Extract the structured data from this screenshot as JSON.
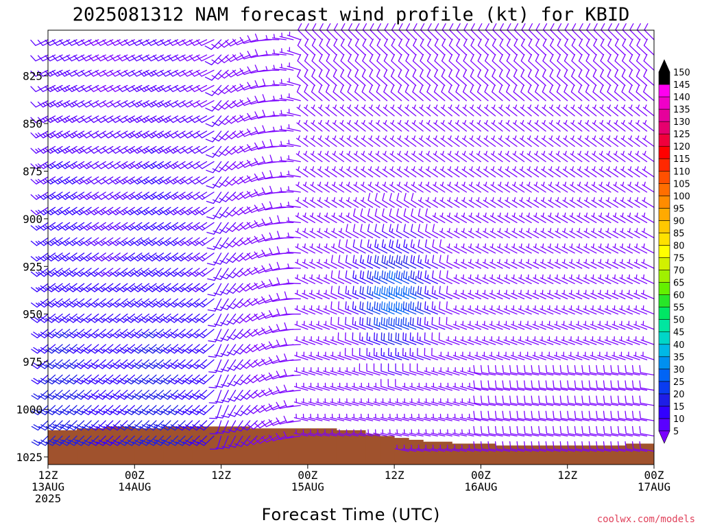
{
  "chart_data": {
    "type": "wind-barb-profile",
    "title": "2025081312 NAM forecast wind profile (kt) for KBID",
    "xlabel": "Forecast Time (UTC)",
    "ylabel": "",
    "y_axis": {
      "ticks": [
        825,
        850,
        875,
        900,
        925,
        950,
        975,
        1000,
        1025
      ],
      "range_hpa": [
        801,
        1029
      ],
      "inverted": true
    },
    "x_axis": {
      "ticks": [
        {
          "line1": "12Z",
          "line2": "13AUG",
          "line3": "2025",
          "hour": 0
        },
        {
          "line1": "00Z",
          "line2": "14AUG",
          "line3": "",
          "hour": 12
        },
        {
          "line1": "12Z",
          "line2": "",
          "line3": "",
          "hour": 24
        },
        {
          "line1": "00Z",
          "line2": "15AUG",
          "line3": "",
          "hour": 36
        },
        {
          "line1": "12Z",
          "line2": "",
          "line3": "",
          "hour": 48
        },
        {
          "line1": "00Z",
          "line2": "16AUG",
          "line3": "",
          "hour": 60
        },
        {
          "line1": "12Z",
          "line2": "",
          "line3": "",
          "hour": 72
        },
        {
          "line1": "00Z",
          "line2": "17AUG",
          "line3": "",
          "hour": 84
        }
      ],
      "range_hours": [
        0,
        84
      ]
    },
    "colorbar": {
      "levels": [
        5,
        10,
        15,
        20,
        25,
        30,
        35,
        40,
        45,
        50,
        55,
        60,
        65,
        70,
        75,
        80,
        85,
        90,
        95,
        100,
        105,
        110,
        115,
        120,
        125,
        130,
        135,
        140,
        145,
        150
      ],
      "colors": [
        "#7a00ff",
        "#5a00ff",
        "#3200ff",
        "#1e1ee6",
        "#0a3cf0",
        "#0064f5",
        "#0090f0",
        "#00b8e6",
        "#00d6c8",
        "#00e6a0",
        "#00e664",
        "#28e628",
        "#64f000",
        "#a0f000",
        "#d2f000",
        "#ffff00",
        "#ffe100",
        "#ffc800",
        "#ffaa00",
        "#ff8c00",
        "#ff6e00",
        "#ff5000",
        "#ff2800",
        "#ff0000",
        "#f0003c",
        "#e6006e",
        "#e6009b",
        "#f000c8",
        "#ff00f0",
        "#000000"
      ]
    },
    "wind_field": {
      "description": "Wind barbs every 1 h, every ~8 hPa; direction in degrees (from), speed in kt",
      "early_direction_deg": 225,
      "early_speed_kt": [
        10,
        22
      ],
      "late_direction_deg": 315,
      "late_speed_kt": [
        5,
        12
      ],
      "jet_peak_kt": 35,
      "transition_hour": 36
    },
    "terrain": {
      "color": "#a0522d",
      "surface_pressure_hpa": [
        [
          0,
          1011
        ],
        [
          4,
          1010
        ],
        [
          8,
          1009
        ],
        [
          12,
          1010
        ],
        [
          16,
          1009
        ],
        [
          20,
          1009
        ],
        [
          24,
          1009
        ],
        [
          28,
          1010
        ],
        [
          32,
          1010
        ],
        [
          36,
          1010
        ],
        [
          40,
          1011
        ],
        [
          44,
          1013
        ],
        [
          46,
          1014
        ],
        [
          48,
          1015
        ],
        [
          50,
          1016
        ],
        [
          52,
          1017
        ],
        [
          56,
          1018
        ],
        [
          60,
          1018
        ],
        [
          62,
          1019
        ],
        [
          64,
          1019
        ],
        [
          68,
          1019
        ],
        [
          72,
          1019
        ],
        [
          76,
          1019
        ],
        [
          80,
          1018
        ],
        [
          84,
          1018
        ]
      ]
    },
    "credit": "coolwx.com/models"
  }
}
